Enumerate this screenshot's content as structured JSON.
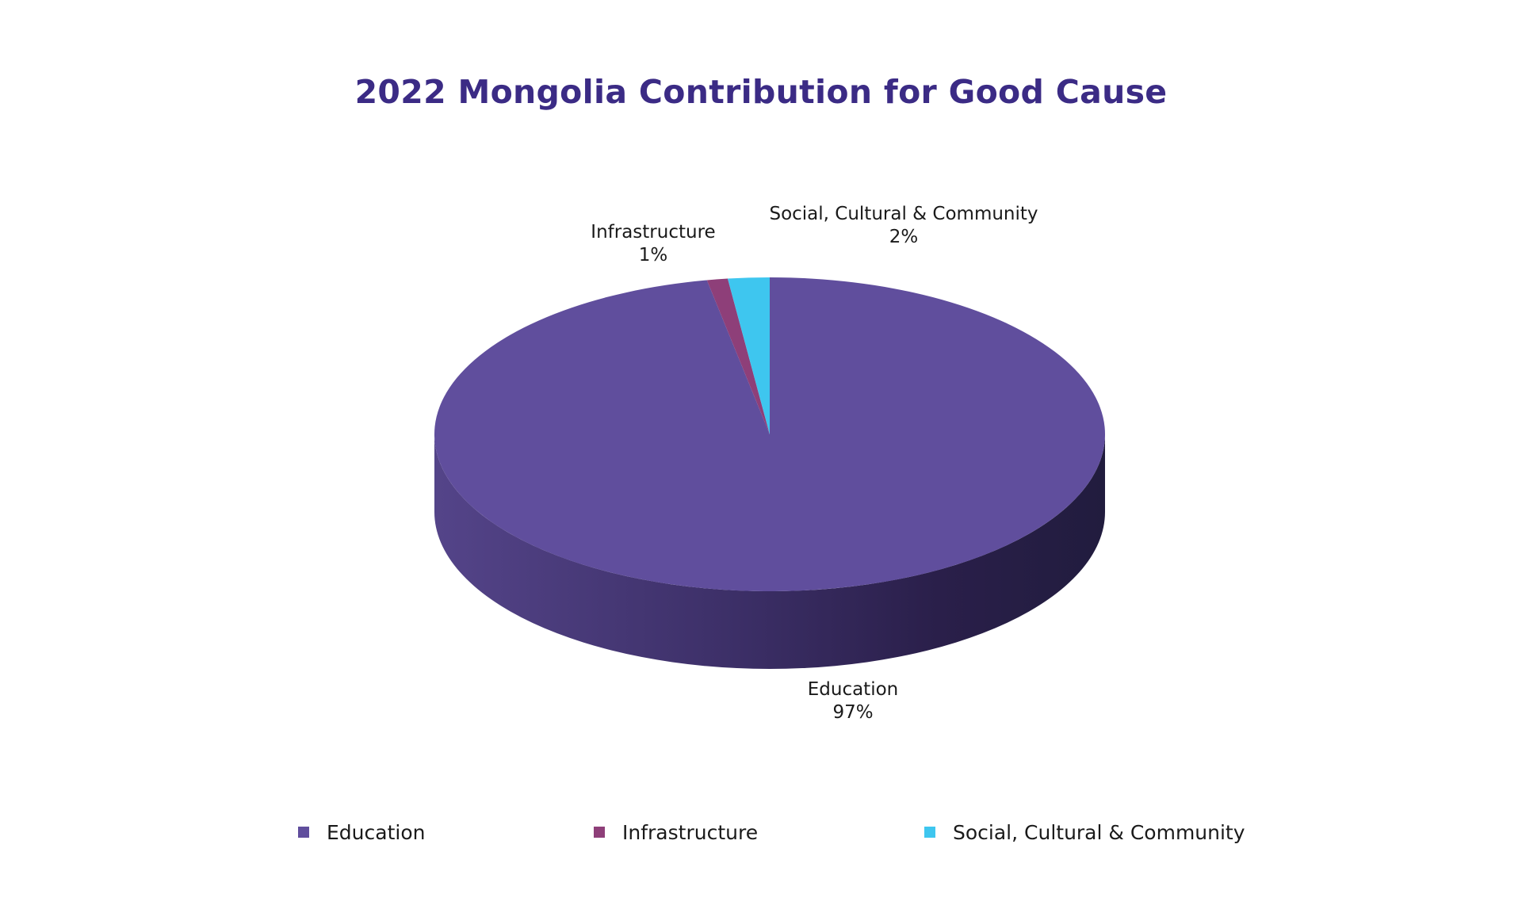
{
  "chart_data": {
    "type": "pie",
    "title": "2022 Mongolia Contribution for Good Cause",
    "slices": [
      {
        "name": "Education",
        "value": 97,
        "label": "97%",
        "color": "#604e9d"
      },
      {
        "name": "Infrastructure",
        "value": 1,
        "label": "1%",
        "color": "#8e3f79"
      },
      {
        "name": "Social, Cultural & Community",
        "value": 2,
        "label": "2%",
        "color": "#3ec6ef"
      }
    ],
    "legend_position": "bottom",
    "style": "3d"
  },
  "legend": [
    {
      "label": "Education",
      "color": "#604e9d"
    },
    {
      "label": "Infrastructure",
      "color": "#8e3f79"
    },
    {
      "label": "Social, Cultural & Community",
      "color": "#3ec6ef"
    }
  ]
}
